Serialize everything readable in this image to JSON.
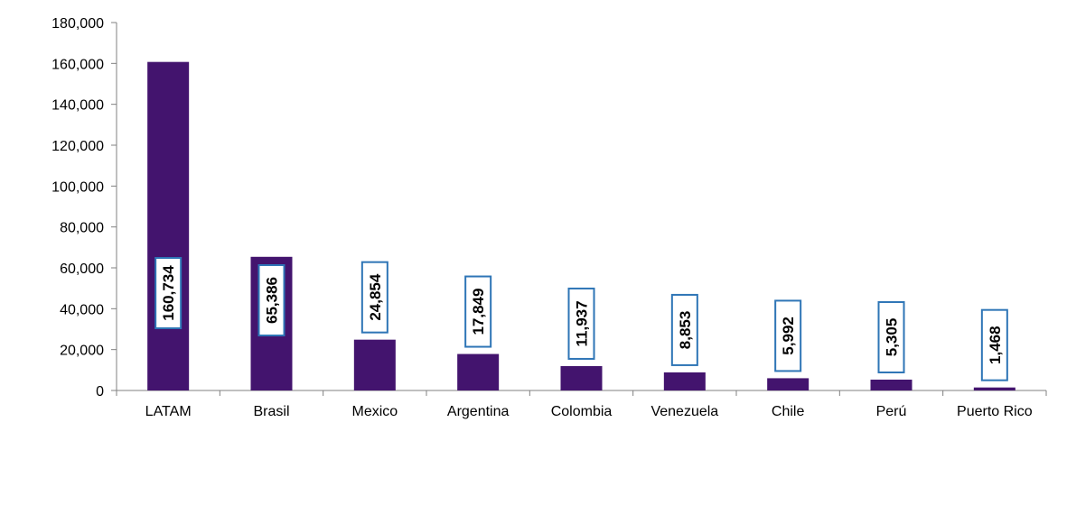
{
  "chart_data": {
    "type": "bar",
    "categories": [
      "LATAM",
      "Brasil",
      "Mexico",
      "Argentina",
      "Colombia",
      "Venezuela",
      "Chile",
      "Perú",
      "Puerto Rico"
    ],
    "values": [
      160734,
      65386,
      24854,
      17849,
      11937,
      8853,
      5992,
      5305,
      1468
    ],
    "value_labels": [
      "160,734",
      "65,386",
      "24,854",
      "17,849",
      "11,937",
      "8,853",
      "5,992",
      "5,305",
      "1,468"
    ],
    "y_ticks": [
      0,
      20000,
      40000,
      60000,
      80000,
      100000,
      120000,
      140000,
      160000,
      180000
    ],
    "y_tick_labels": [
      "0",
      "20,000",
      "40,000",
      "60,000",
      "80,000",
      "100,000",
      "120,000",
      "140,000",
      "160,000",
      "180,000"
    ],
    "ylim": [
      0,
      180000
    ],
    "title": "",
    "xlabel": "",
    "ylabel": "",
    "grid": false,
    "legend": "none",
    "bar_color": "#43146E",
    "label_box_border_color": "#2E75B6",
    "axis_color": "#808080"
  }
}
